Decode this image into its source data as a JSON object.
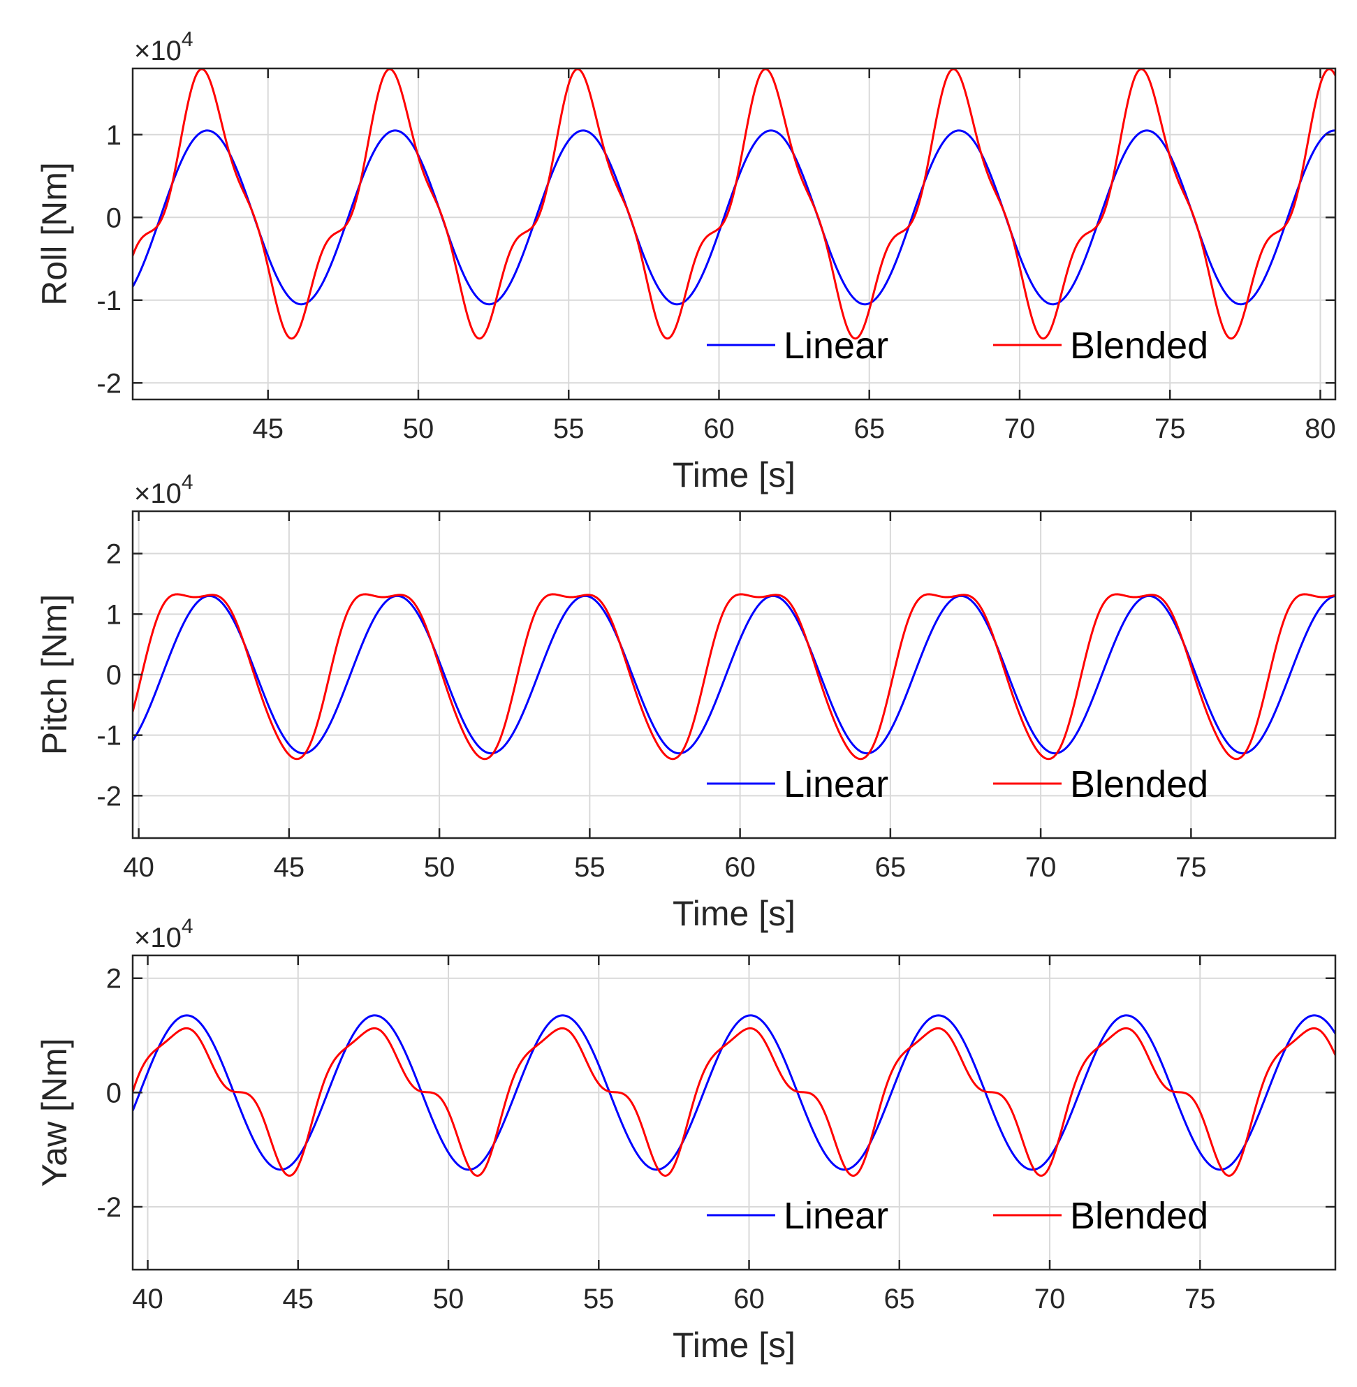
{
  "figure": {
    "colors": {
      "linear": "#0000ff",
      "blended": "#ff0000",
      "grid": "#d9d9d9",
      "axis": "#262626"
    }
  },
  "chart_data": [
    {
      "type": "line",
      "name": "roll",
      "title": "",
      "xlabel": "Time [s]",
      "ylabel": "Roll [Nm]",
      "exponent_label": "×10^4",
      "xlim": [
        40.5,
        80.5
      ],
      "ylim": [
        -2.2,
        1.8
      ],
      "xticks": [
        45,
        50,
        55,
        60,
        65,
        70,
        75,
        80
      ],
      "yticks": [
        -2,
        -1,
        0,
        1
      ],
      "ytick_labels": [
        "-2",
        "-1",
        "0",
        "1"
      ],
      "grid": true,
      "legend": {
        "position": "bottom-right",
        "entries": [
          "Linear",
          "Blended"
        ]
      },
      "series": [
        {
          "name": "Linear",
          "color": "#0000ff",
          "kind": "sine",
          "amplitude": 1.05,
          "period": 6.25,
          "peak_time": 42.98,
          "offset": 0
        },
        {
          "name": "Blended",
          "color": "#ff0000",
          "kind": "harmonic",
          "period": 6.25,
          "phase_ref": 40.5,
          "harmonics": [
            {
              "a": 1.35,
              "phi": -0.78
            },
            {
              "a": 0.15,
              "phi": 2.24
            },
            {
              "a": 0.28,
              "phi": 1.29
            }
          ],
          "offset": 0.1
        }
      ]
    },
    {
      "type": "line",
      "name": "pitch",
      "title": "",
      "xlabel": "Time [s]",
      "ylabel": "Pitch [Nm]",
      "exponent_label": "×10^4",
      "xlim": [
        39.8,
        79.8
      ],
      "ylim": [
        -2.7,
        2.7
      ],
      "xticks": [
        40,
        45,
        50,
        55,
        60,
        65,
        70,
        75
      ],
      "yticks": [
        -2,
        -1,
        0,
        1,
        2
      ],
      "ytick_labels": [
        "-2",
        "-1",
        "0",
        "1",
        "2"
      ],
      "grid": true,
      "legend": {
        "position": "bottom-right",
        "entries": [
          "Linear",
          "Blended"
        ]
      },
      "series": [
        {
          "name": "Linear",
          "color": "#0000ff",
          "kind": "sine",
          "amplitude": 1.3,
          "period": 6.25,
          "peak_time": 42.35,
          "offset": 0
        },
        {
          "name": "Blended",
          "color": "#ff0000",
          "kind": "harmonic",
          "period": 6.25,
          "phase_ref": 39.8,
          "harmonics": [
            {
              "a": 1.4,
              "phi": -0.61
            },
            {
              "a": 0.3,
              "phi": 0.1
            },
            {
              "a": 0.1,
              "phi": -1.13
            }
          ],
          "offset": 0.25
        }
      ]
    },
    {
      "type": "line",
      "name": "yaw",
      "title": "",
      "xlabel": "Time [s]",
      "ylabel": "Yaw [Nm]",
      "exponent_label": "×10^4",
      "xlim": [
        39.5,
        79.5
      ],
      "ylim": [
        -3.1,
        2.4
      ],
      "xticks": [
        40,
        45,
        50,
        55,
        60,
        65,
        70,
        75
      ],
      "yticks": [
        -2,
        0,
        2
      ],
      "ytick_labels": [
        "-2",
        "0",
        "2"
      ],
      "grid": true,
      "legend": {
        "position": "bottom-right",
        "entries": [
          "Linear",
          "Blended"
        ]
      },
      "series": [
        {
          "name": "Linear",
          "color": "#0000ff",
          "kind": "sine",
          "amplitude": 1.35,
          "period": 6.25,
          "peak_time": 41.3,
          "offset": 0
        },
        {
          "name": "Blended",
          "color": "#ff0000",
          "kind": "harmonic",
          "period": 6.25,
          "phase_ref": 39.5,
          "harmonics": [
            {
              "a": 1.07,
              "phi": -0.24
            },
            {
              "a": 0.3,
              "phi": -0.01
            },
            {
              "a": 0.22,
              "phi": 1.54
            }
          ],
          "offset": 0.05
        }
      ]
    }
  ]
}
